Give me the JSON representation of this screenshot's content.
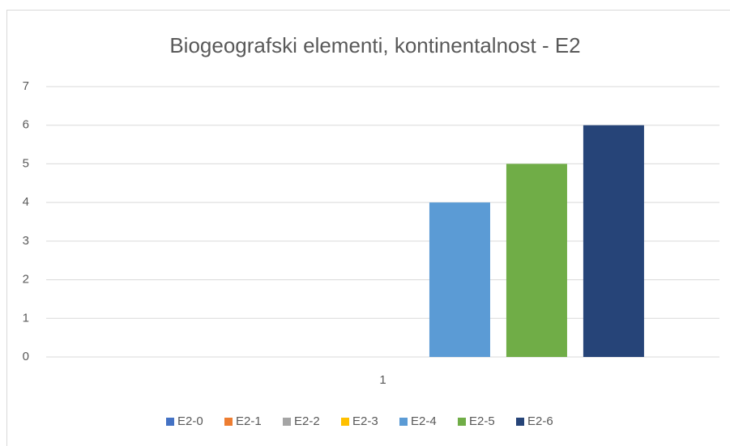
{
  "chart_data": {
    "type": "bar",
    "title": "Biogeografski elementi, kontinentalnost - E2",
    "categories": [
      "1"
    ],
    "series": [
      {
        "name": "E2-0",
        "color": "#4472c4",
        "values": [
          0
        ]
      },
      {
        "name": "E2-1",
        "color": "#ed7d31",
        "values": [
          0
        ]
      },
      {
        "name": "E2-2",
        "color": "#a5a5a5",
        "values": [
          0
        ]
      },
      {
        "name": "E2-3",
        "color": "#ffc000",
        "values": [
          0
        ]
      },
      {
        "name": "E2-4",
        "color": "#5b9bd5",
        "values": [
          4
        ]
      },
      {
        "name": "E2-5",
        "color": "#70ad47",
        "values": [
          5
        ]
      },
      {
        "name": "E2-6",
        "color": "#264478",
        "values": [
          6
        ]
      }
    ],
    "ylim": [
      0,
      7
    ],
    "yticks": [
      0,
      1,
      2,
      3,
      4,
      5,
      6,
      7
    ],
    "grid": true,
    "legend": "bottom"
  }
}
